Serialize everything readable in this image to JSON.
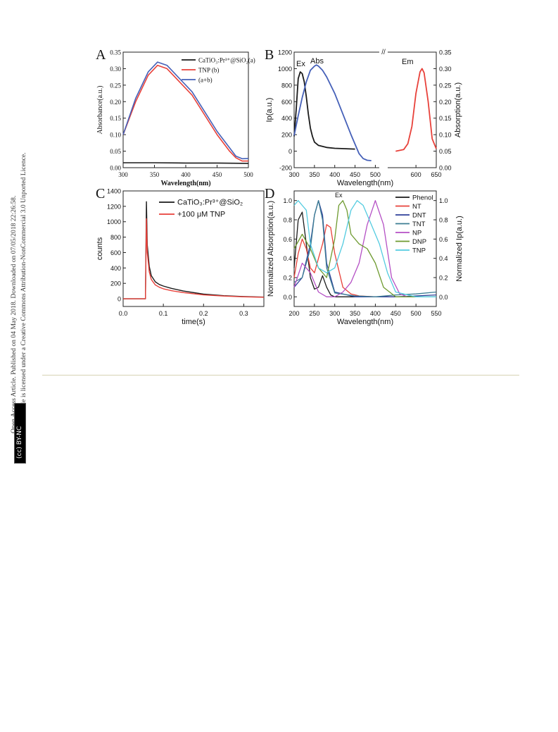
{
  "sidebar": {
    "line1": "Open Access Article. Published on 04 May 2018. Downloaded on 07/05/2018 22:26:58.",
    "line2": "This article is licensed under a Creative Commons Attribution-NonCommercial 3.0 Unported Licence.",
    "badge": "(cc) BY-NC"
  },
  "colors": {
    "black": "#1a1a1a",
    "red": "#e8413a",
    "blue": "#4560b8",
    "darkblue": "#2e3f9a",
    "teal": "#3b7d93",
    "purple": "#b44fc4",
    "olive": "#6e9a2f",
    "cyan": "#52cbe0"
  },
  "chart_data": [
    {
      "panel": "A",
      "type": "line",
      "xlabel": "Wavelength(nm)",
      "ylabel": "Absorbance(a.u.)",
      "xlim": [
        300,
        500
      ],
      "ylim": [
        0.0,
        0.35
      ],
      "xticks": [
        "300",
        "350",
        "400",
        "450",
        "500"
      ],
      "yticks": [
        "0.00",
        "0.05",
        "0.10",
        "0.15",
        "0.20",
        "0.25",
        "0.30",
        "0.35"
      ],
      "legend_position": "top-right",
      "legend": [
        "CaTiO₃:Pr³⁺@SiO₂(a)",
        "TNP (b)",
        "(a+b)"
      ],
      "series": [
        {
          "name": "CaTiO₃:Pr³⁺@SiO₂(a)",
          "color": "#1a1a1a",
          "x": [
            300,
            350,
            400,
            450,
            500
          ],
          "y": [
            0.015,
            0.015,
            0.014,
            0.014,
            0.013
          ]
        },
        {
          "name": "TNP (b)",
          "color": "#e8413a",
          "x": [
            300,
            320,
            340,
            355,
            370,
            390,
            410,
            430,
            450,
            470,
            480,
            490,
            500
          ],
          "y": [
            0.1,
            0.2,
            0.28,
            0.31,
            0.3,
            0.26,
            0.22,
            0.16,
            0.1,
            0.05,
            0.03,
            0.02,
            0.02
          ]
        },
        {
          "name": "(a+b)",
          "color": "#4560b8",
          "x": [
            300,
            320,
            340,
            355,
            370,
            390,
            410,
            430,
            450,
            470,
            480,
            490,
            500
          ],
          "y": [
            0.1,
            0.21,
            0.29,
            0.32,
            0.31,
            0.27,
            0.23,
            0.17,
            0.11,
            0.06,
            0.035,
            0.027,
            0.028
          ]
        }
      ]
    },
    {
      "panel": "B",
      "type": "line",
      "xlabel": "Wavelength(nm)",
      "ylabel_left": "Ip(a.u.)",
      "ylabel_right": "Absorption(a.u.)",
      "xlim": [
        300,
        650
      ],
      "ylim_left": [
        -200,
        1200
      ],
      "ylim_right": [
        0.0,
        0.35
      ],
      "xticks": [
        "300",
        "350",
        "400",
        "450",
        "500",
        "600",
        "650"
      ],
      "yticks_left": [
        "-200",
        "0",
        "200",
        "400",
        "600",
        "800",
        "1000",
        "1200"
      ],
      "yticks_right": [
        "0.00",
        "0.05",
        "0.10",
        "0.15",
        "0.20",
        "0.25",
        "0.30",
        "0.35"
      ],
      "annotations": [
        "Ex",
        "Abs",
        "Em"
      ],
      "series": [
        {
          "name": "Ex",
          "color": "#1a1a1a",
          "x": [
            300,
            305,
            310,
            315,
            320,
            325,
            330,
            335,
            340,
            345,
            350,
            360,
            380,
            400,
            450
          ],
          "y": [
            180,
            500,
            880,
            960,
            940,
            840,
            660,
            450,
            280,
            180,
            110,
            70,
            45,
            35,
            25
          ]
        },
        {
          "name": "Abs",
          "color": "#4560b8",
          "x": [
            300,
            310,
            320,
            330,
            340,
            350,
            355,
            360,
            370,
            380,
            400,
            420,
            440,
            460,
            470,
            480,
            490
          ],
          "y": [
            190,
            430,
            650,
            840,
            980,
            1030,
            1045,
            1030,
            980,
            900,
            700,
            450,
            200,
            -30,
            -90,
            -110,
            -115
          ]
        },
        {
          "name": "Em",
          "color": "#e8413a",
          "x": [
            550,
            570,
            580,
            590,
            600,
            610,
            615,
            620,
            630,
            640,
            650
          ],
          "y": [
            0,
            20,
            90,
            300,
            700,
            960,
            1000,
            950,
            600,
            150,
            30
          ]
        }
      ]
    },
    {
      "panel": "C",
      "type": "line",
      "xlabel": "time(s)",
      "ylabel": "counts",
      "xlim": [
        0.0,
        0.35
      ],
      "ylim": [
        -100,
        1400
      ],
      "xticks": [
        "0.0",
        "0.1",
        "0.2",
        "0.3"
      ],
      "yticks": [
        "0",
        "200",
        "400",
        "600",
        "800",
        "1000",
        "1200",
        "1400"
      ],
      "legend_position": "top-right",
      "legend": [
        "CaTiO₃:Pr³⁺@SiO₂",
        "+100 μM TNP"
      ],
      "series": [
        {
          "name": "CaTiO₃:Pr³⁺@SiO₂",
          "color": "#1a1a1a",
          "x": [
            0,
            0.055,
            0.0555,
            0.058,
            0.06,
            0.065,
            0.07,
            0.08,
            0.09,
            0.1,
            0.12,
            0.15,
            0.2,
            0.25,
            0.3,
            0.35
          ],
          "y": [
            0,
            0,
            0,
            1260,
            700,
            420,
            300,
            220,
            185,
            165,
            135,
            100,
            60,
            40,
            28,
            22
          ]
        },
        {
          "name": "+100 μM TNP",
          "color": "#e8413a",
          "x": [
            0,
            0.055,
            0.0555,
            0.058,
            0.06,
            0.065,
            0.07,
            0.08,
            0.09,
            0.1,
            0.12,
            0.15,
            0.2,
            0.25,
            0.3,
            0.35
          ],
          "y": [
            0,
            0,
            0,
            1040,
            600,
            350,
            250,
            180,
            150,
            130,
            105,
            80,
            50,
            35,
            25,
            20
          ]
        }
      ]
    },
    {
      "panel": "D",
      "type": "line",
      "xlabel": "Wavelength(nm)",
      "ylabel_left": "Normalized Absorption(a.u.)",
      "ylabel_right": "Normalized Ip(a.u.)",
      "xlim": [
        200,
        550
      ],
      "ylim": [
        -0.1,
        1.1
      ],
      "xticks": [
        "200",
        "250",
        "300",
        "350",
        "400",
        "450",
        "500",
        "550"
      ],
      "yticks_left": [
        "0.0",
        "0.2",
        "0.4",
        "0.6",
        "0.8",
        "1.0"
      ],
      "yticks_right": [
        "0.0",
        "0.2",
        "0.4",
        "0.6",
        "0.8",
        "1.0"
      ],
      "annotations": [
        "Ex"
      ],
      "legend_position": "top-right",
      "legend": [
        "Phenol",
        "NT",
        "DNT",
        "TNT",
        "NP",
        "DNP",
        "TNP"
      ],
      "series": [
        {
          "name": "Phenol",
          "color": "#1a1a1a",
          "x": [
            200,
            210,
            220,
            230,
            240,
            250,
            260,
            270,
            280,
            290,
            300,
            350,
            400,
            450,
            500,
            550
          ],
          "y": [
            0.3,
            0.8,
            0.88,
            0.55,
            0.2,
            0.08,
            0.1,
            0.22,
            0.1,
            0.02,
            0.0,
            0.0,
            0.0,
            0.0,
            0.0,
            0.0
          ]
        },
        {
          "name": "NT",
          "color": "#e8413a",
          "x": [
            200,
            210,
            220,
            230,
            240,
            250,
            260,
            270,
            280,
            290,
            300,
            320,
            340,
            360,
            400,
            450,
            500,
            550
          ],
          "y": [
            0.2,
            0.45,
            0.6,
            0.5,
            0.3,
            0.25,
            0.4,
            0.55,
            0.75,
            0.72,
            0.45,
            0.1,
            0.03,
            0.01,
            0.0,
            0.0,
            0.0,
            0.0
          ]
        },
        {
          "name": "DNT",
          "color": "#2e3f9a",
          "x": [
            200,
            220,
            240,
            250,
            260,
            270,
            280,
            300,
            350,
            400,
            450,
            500,
            550
          ],
          "y": [
            0.1,
            0.2,
            0.55,
            0.85,
            1.0,
            0.85,
            0.35,
            0.05,
            0.0,
            0.0,
            0.0,
            0.01,
            0.02
          ]
        },
        {
          "name": "TNT",
          "color": "#3b7d93",
          "x": [
            200,
            220,
            240,
            250,
            260,
            270,
            280,
            300,
            350,
            400,
            450,
            500,
            550
          ],
          "y": [
            0.15,
            0.2,
            0.5,
            0.85,
            1.0,
            0.8,
            0.3,
            0.04,
            0.01,
            0.0,
            0.02,
            0.03,
            0.05
          ]
        },
        {
          "name": "NP",
          "color": "#b44fc4",
          "x": [
            200,
            220,
            240,
            260,
            280,
            300,
            320,
            340,
            360,
            380,
            400,
            420,
            440,
            460,
            480,
            500,
            550
          ],
          "y": [
            0.1,
            0.35,
            0.25,
            0.05,
            0.0,
            0.0,
            0.05,
            0.15,
            0.35,
            0.75,
            1.0,
            0.75,
            0.2,
            0.03,
            0.0,
            0.0,
            0.0
          ]
        },
        {
          "name": "DNP",
          "color": "#6e9a2f",
          "x": [
            200,
            220,
            240,
            260,
            280,
            300,
            310,
            320,
            330,
            340,
            360,
            380,
            400,
            420,
            450,
            500,
            550
          ],
          "y": [
            0.5,
            0.65,
            0.5,
            0.3,
            0.2,
            0.6,
            0.95,
            1.0,
            0.9,
            0.65,
            0.55,
            0.5,
            0.35,
            0.1,
            0.0,
            0.0,
            0.0
          ]
        },
        {
          "name": "TNP",
          "color": "#52cbe0",
          "x": [
            200,
            210,
            220,
            230,
            240,
            260,
            280,
            300,
            320,
            340,
            355,
            370,
            390,
            410,
            430,
            450,
            500,
            550
          ],
          "y": [
            0.95,
            1.0,
            0.95,
            0.9,
            0.55,
            0.3,
            0.25,
            0.3,
            0.55,
            0.9,
            1.0,
            0.95,
            0.75,
            0.55,
            0.25,
            0.05,
            0.0,
            0.0
          ]
        }
      ]
    }
  ]
}
